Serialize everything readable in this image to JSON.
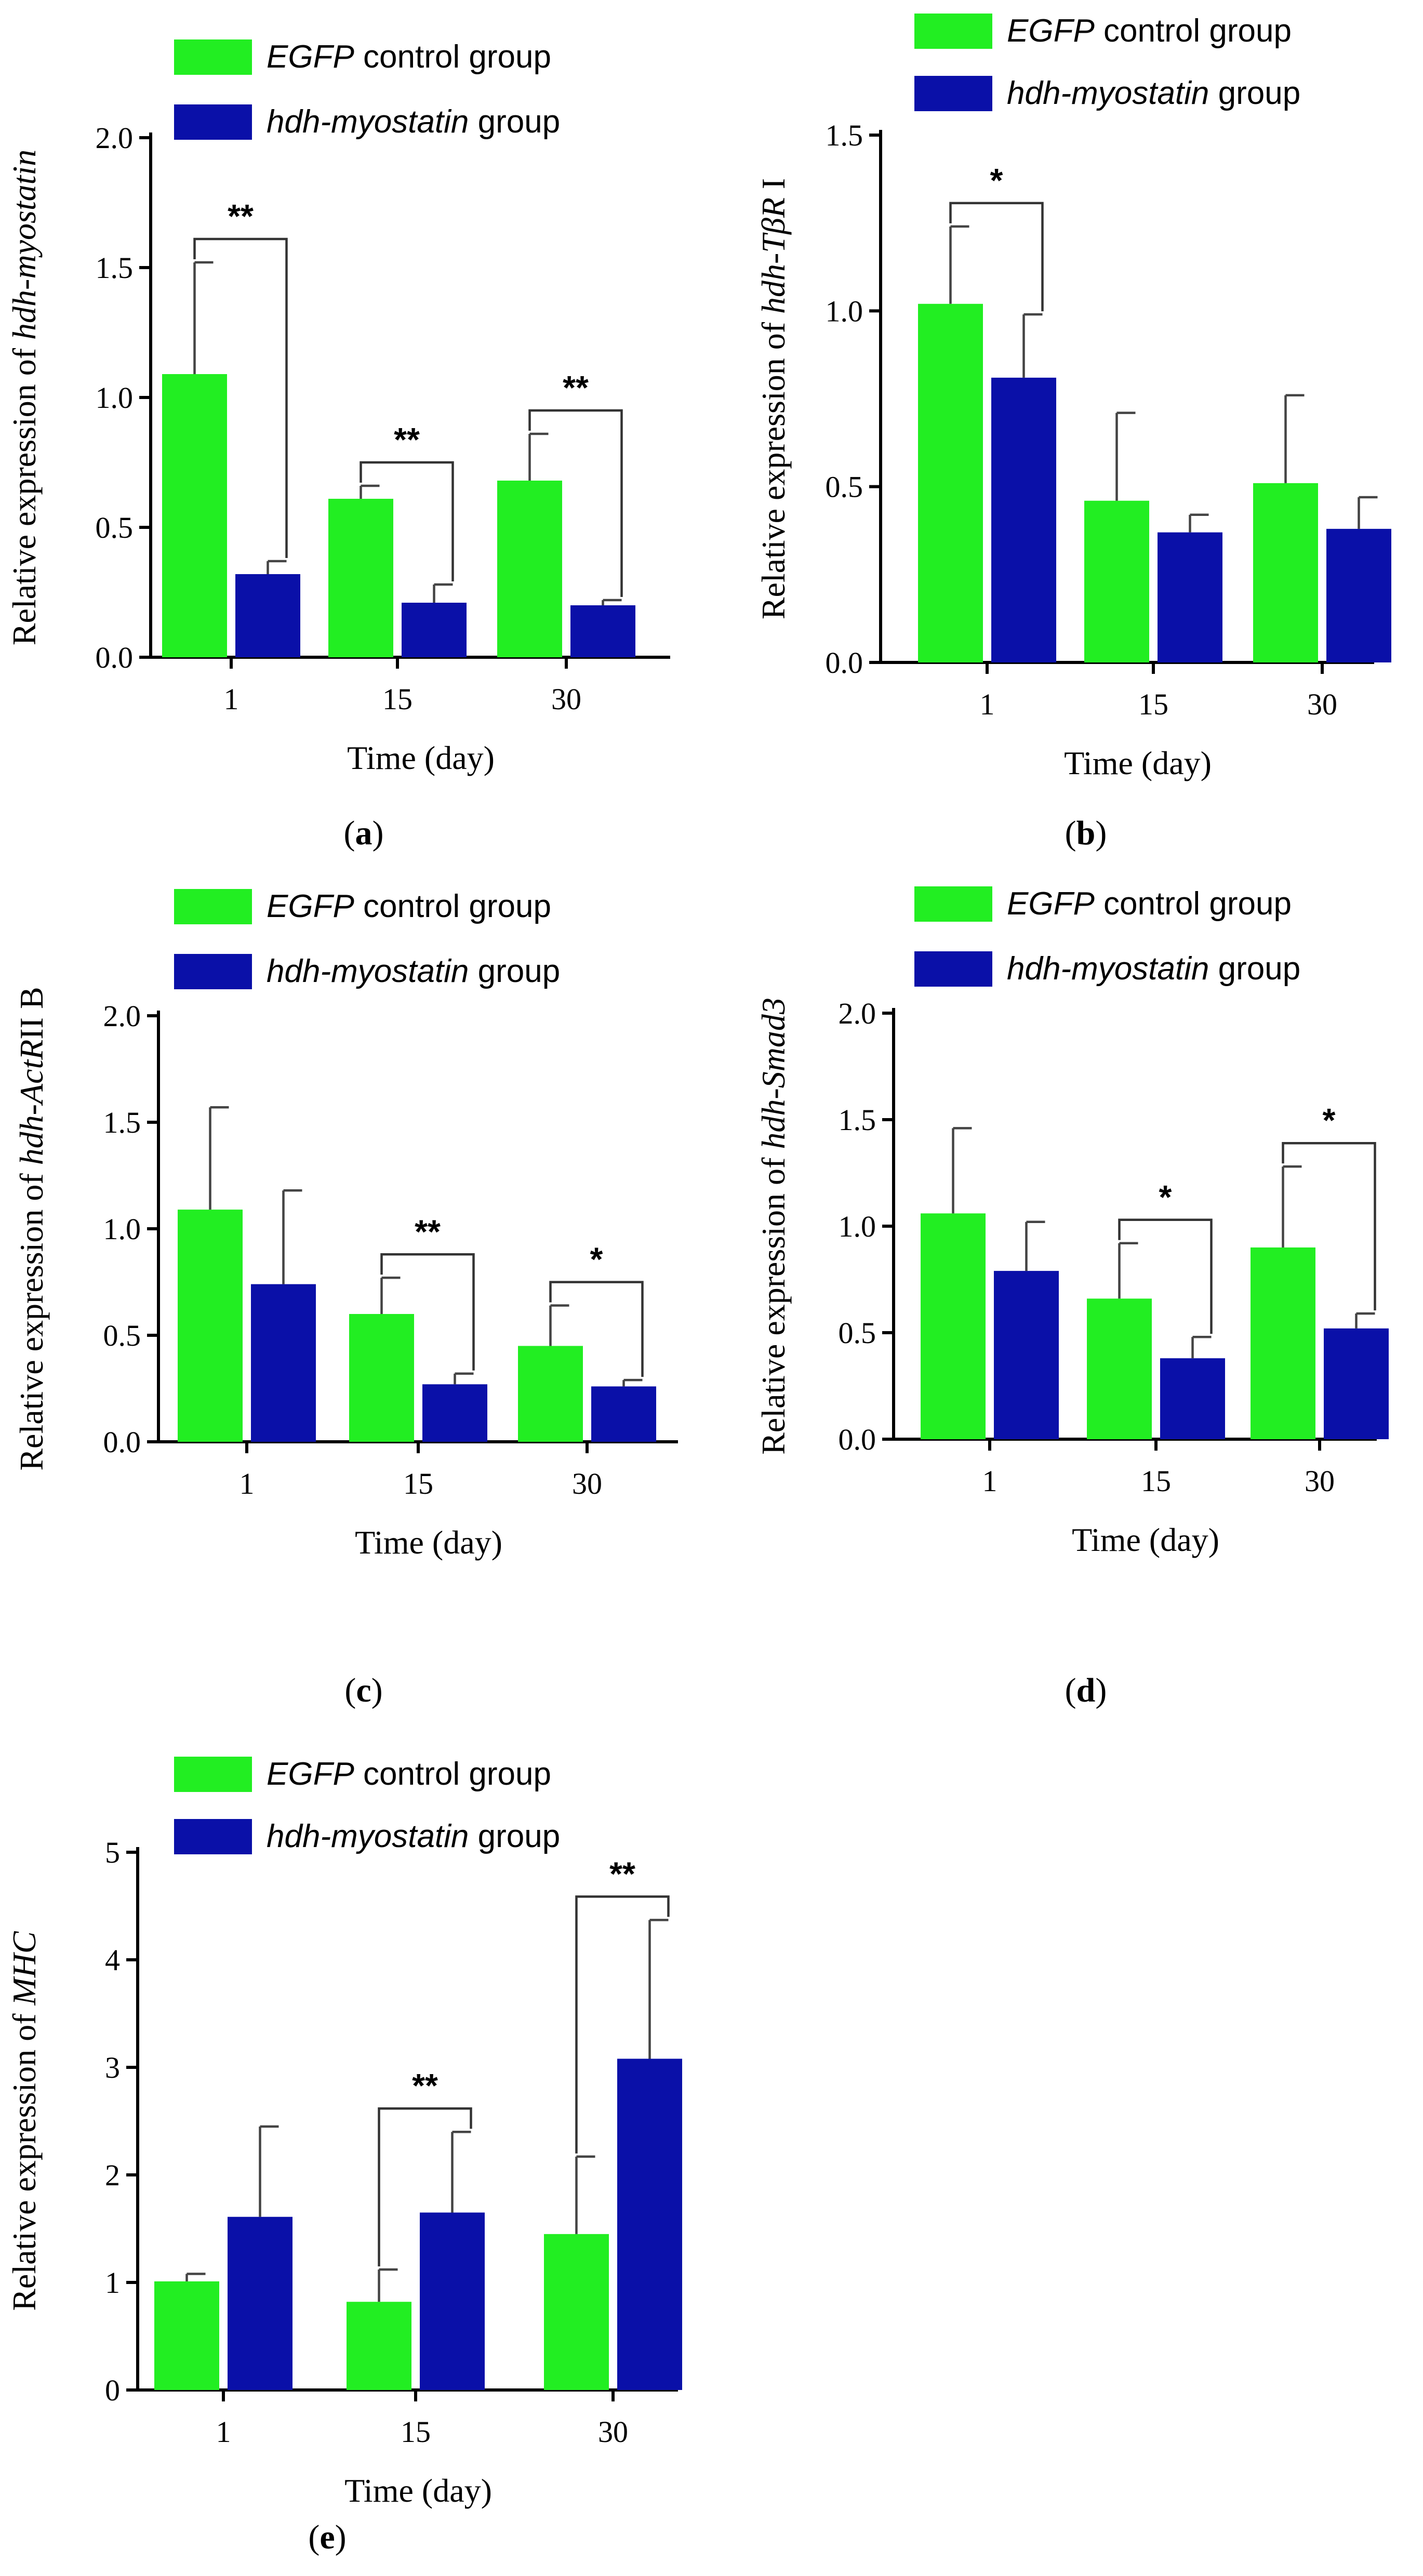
{
  "colors": {
    "control": "#22ee22",
    "treatment": "#0a10a8",
    "error_bar": "#444444"
  },
  "legend": {
    "control": {
      "italic": "EGFP",
      "rest": " control group"
    },
    "treatment": {
      "italic": "hdh-myostatin",
      "rest": " group"
    }
  },
  "xlabel": "Time (day)",
  "chart_data": [
    {
      "id": "a",
      "panel_label": "a",
      "type": "bar",
      "ylabel_prefix": "Relative expression  of ",
      "ylabel_italic": "hdh-myostatin",
      "ylabel_suffix": "",
      "categories": [
        "1",
        "15",
        "30"
      ],
      "ylim": [
        0,
        2.0
      ],
      "yticks": [
        "0.0",
        "0.5",
        "1.0",
        "1.5",
        "2.0"
      ],
      "ytick_values": [
        0,
        0.5,
        1.0,
        1.5,
        2.0
      ],
      "series": [
        {
          "name": "EGFP control group",
          "values": [
            1.09,
            0.61,
            0.68
          ],
          "errors": [
            0.43,
            0.05,
            0.18
          ]
        },
        {
          "name": "hdh-myostatin group",
          "values": [
            0.32,
            0.21,
            0.2
          ],
          "errors": [
            0.05,
            0.07,
            0.02
          ]
        }
      ],
      "significance": [
        {
          "category": 0,
          "label": "**"
        },
        {
          "category": 1,
          "label": "**"
        },
        {
          "category": 2,
          "label": "**"
        }
      ]
    },
    {
      "id": "b",
      "panel_label": "b",
      "type": "bar",
      "ylabel_prefix": "Relative expression  of ",
      "ylabel_italic": "hdh-TβR",
      "ylabel_suffix": " I",
      "categories": [
        "1",
        "15",
        "30"
      ],
      "ylim": [
        0,
        1.5
      ],
      "yticks": [
        "0.0",
        "0.5",
        "1.0",
        "1.5"
      ],
      "ytick_values": [
        0,
        0.5,
        1.0,
        1.5
      ],
      "series": [
        {
          "name": "EGFP control group",
          "values": [
            1.02,
            0.46,
            0.51
          ],
          "errors": [
            0.22,
            0.25,
            0.25
          ]
        },
        {
          "name": "hdh-myostatin group",
          "values": [
            0.81,
            0.37,
            0.38
          ],
          "errors": [
            0.18,
            0.05,
            0.09
          ]
        }
      ],
      "significance": [
        {
          "category": 0,
          "label": "*"
        }
      ]
    },
    {
      "id": "c",
      "panel_label": "c",
      "type": "bar",
      "ylabel_prefix": "Relative expression  of ",
      "ylabel_italic": "hdh-ActR",
      "ylabel_suffix": "II B",
      "categories": [
        "1",
        "15",
        "30"
      ],
      "ylim": [
        0,
        2.0
      ],
      "yticks": [
        "0.0",
        "0.5",
        "1.0",
        "1.5",
        "2.0"
      ],
      "ytick_values": [
        0,
        0.5,
        1.0,
        1.5,
        2.0
      ],
      "series": [
        {
          "name": "EGFP control group",
          "values": [
            1.09,
            0.6,
            0.45
          ],
          "errors": [
            0.48,
            0.17,
            0.19
          ]
        },
        {
          "name": "hdh-myostatin group",
          "values": [
            0.74,
            0.27,
            0.26
          ],
          "errors": [
            0.44,
            0.05,
            0.03
          ]
        }
      ],
      "significance": [
        {
          "category": 1,
          "label": "**"
        },
        {
          "category": 2,
          "label": "*"
        }
      ]
    },
    {
      "id": "d",
      "panel_label": "d",
      "type": "bar",
      "ylabel_prefix": "Relative expression  of ",
      "ylabel_italic": "hdh-Smad3",
      "ylabel_suffix": "",
      "categories": [
        "1",
        "15",
        "30"
      ],
      "ylim": [
        0,
        2.0
      ],
      "yticks": [
        "0.0",
        "0.5",
        "1.0",
        "1.5",
        "2.0"
      ],
      "ytick_values": [
        0,
        0.5,
        1.0,
        1.5,
        2.0
      ],
      "series": [
        {
          "name": "EGFP control group",
          "values": [
            1.06,
            0.66,
            0.9
          ],
          "errors": [
            0.4,
            0.26,
            0.38
          ]
        },
        {
          "name": "hdh-myostatin group",
          "values": [
            0.79,
            0.38,
            0.52
          ],
          "errors": [
            0.23,
            0.1,
            0.07
          ]
        }
      ],
      "significance": [
        {
          "category": 1,
          "label": "*"
        },
        {
          "category": 2,
          "label": "*"
        }
      ]
    },
    {
      "id": "e",
      "panel_label": "e",
      "type": "bar",
      "ylabel_prefix": "Relative expression  of  ",
      "ylabel_italic": "MHC",
      "ylabel_suffix": "",
      "categories": [
        "1",
        "15",
        "30"
      ],
      "ylim": [
        0,
        5
      ],
      "yticks": [
        "0",
        "1",
        "2",
        "3",
        "4",
        "5"
      ],
      "ytick_values": [
        0,
        1,
        2,
        3,
        4,
        5
      ],
      "series": [
        {
          "name": "EGFP control group",
          "values": [
            1.01,
            0.82,
            1.45
          ],
          "errors": [
            0.07,
            0.3,
            0.72
          ]
        },
        {
          "name": "hdh-myostatin group",
          "values": [
            1.61,
            1.65,
            3.08
          ],
          "errors": [
            0.84,
            0.75,
            1.29
          ]
        }
      ],
      "significance": [
        {
          "category": 1,
          "label": "**"
        },
        {
          "category": 2,
          "label": "**"
        }
      ]
    }
  ]
}
